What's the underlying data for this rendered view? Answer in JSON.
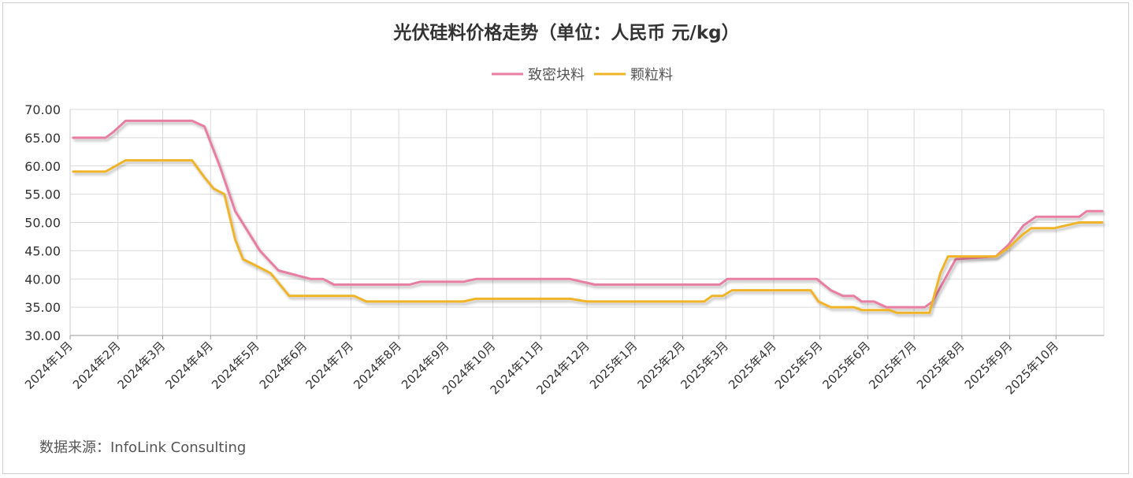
{
  "chart_data": {
    "type": "line",
    "title": "光伏硅料价格走势（单位：人民币 元/kg）",
    "source": "数据来源：InfoLink Consulting",
    "ylim": [
      30,
      70
    ],
    "yticks": [
      "30.00",
      "35.00",
      "40.00",
      "45.00",
      "50.00",
      "55.00",
      "60.00",
      "65.00",
      "70.00"
    ],
    "xlim": [
      "2024-01-01",
      "2025-11-01"
    ],
    "xticks": [
      {
        "date": "2024-01-01",
        "label": "2024年1月"
      },
      {
        "date": "2024-02-01",
        "label": "2024年2月"
      },
      {
        "date": "2024-03-01",
        "label": "2024年3月"
      },
      {
        "date": "2024-04-01",
        "label": "2024年4月"
      },
      {
        "date": "2024-05-01",
        "label": "2024年5月"
      },
      {
        "date": "2024-06-01",
        "label": "2024年6月"
      },
      {
        "date": "2024-07-01",
        "label": "2024年7月"
      },
      {
        "date": "2024-08-01",
        "label": "2024年8月"
      },
      {
        "date": "2024-09-01",
        "label": "2024年9月"
      },
      {
        "date": "2024-10-01",
        "label": "2024年10月"
      },
      {
        "date": "2024-11-01",
        "label": "2024年11月"
      },
      {
        "date": "2024-12-01",
        "label": "2024年12月"
      },
      {
        "date": "2025-01-01",
        "label": "2025年1月"
      },
      {
        "date": "2025-02-01",
        "label": "2025年2月"
      },
      {
        "date": "2025-03-01",
        "label": "2025年3月"
      },
      {
        "date": "2025-04-01",
        "label": "2025年4月"
      },
      {
        "date": "2025-05-01",
        "label": "2025年5月"
      },
      {
        "date": "2025-06-01",
        "label": "2025年6月"
      },
      {
        "date": "2025-07-01",
        "label": "2025年7月"
      },
      {
        "date": "2025-08-01",
        "label": "2025年8月"
      },
      {
        "date": "2025-09-01",
        "label": "2025年9月"
      },
      {
        "date": "2025-10-01",
        "label": "2025年10月"
      }
    ],
    "grid": true,
    "legend_position": "top-center",
    "series": [
      {
        "name": "致密块料",
        "color": "#e87ea1",
        "points": [
          [
            "2024-01-03",
            65
          ],
          [
            "2024-01-24",
            65
          ],
          [
            "2024-01-29",
            66
          ],
          [
            "2024-02-06",
            68
          ],
          [
            "2024-03-20",
            68
          ],
          [
            "2024-03-28",
            67
          ],
          [
            "2024-04-07",
            60
          ],
          [
            "2024-04-17",
            52
          ],
          [
            "2024-05-03",
            45
          ],
          [
            "2024-05-15",
            41.5
          ],
          [
            "2024-06-05",
            40
          ],
          [
            "2024-06-13",
            40
          ],
          [
            "2024-06-20",
            39
          ],
          [
            "2024-08-08",
            39
          ],
          [
            "2024-08-15",
            39.5
          ],
          [
            "2024-09-12",
            39.5
          ],
          [
            "2024-09-20",
            40
          ],
          [
            "2024-11-20",
            40
          ],
          [
            "2024-12-06",
            39
          ],
          [
            "2025-02-25",
            39
          ],
          [
            "2025-03-02",
            40
          ],
          [
            "2025-04-29",
            40
          ],
          [
            "2025-05-08",
            38
          ],
          [
            "2025-05-16",
            37
          ],
          [
            "2025-05-23",
            37
          ],
          [
            "2025-05-28",
            36
          ],
          [
            "2025-06-05",
            36
          ],
          [
            "2025-06-13",
            35
          ],
          [
            "2025-07-08",
            35
          ],
          [
            "2025-07-13",
            36
          ],
          [
            "2025-07-21",
            40
          ],
          [
            "2025-07-28",
            43.5
          ],
          [
            "2025-08-23",
            44
          ],
          [
            "2025-08-31",
            46
          ],
          [
            "2025-09-10",
            49.5
          ],
          [
            "2025-09-18",
            51
          ],
          [
            "2025-10-16",
            51
          ],
          [
            "2025-10-21",
            52
          ],
          [
            "2025-10-31",
            52
          ]
        ]
      },
      {
        "name": "颗粒料",
        "color": "#f0b429",
        "points": [
          [
            "2024-01-03",
            59
          ],
          [
            "2024-01-24",
            59
          ],
          [
            "2024-02-06",
            61
          ],
          [
            "2024-03-20",
            61
          ],
          [
            "2024-03-28",
            58
          ],
          [
            "2024-04-03",
            56
          ],
          [
            "2024-04-10",
            55
          ],
          [
            "2024-04-17",
            47
          ],
          [
            "2024-04-22",
            43.5
          ],
          [
            "2024-05-03",
            42
          ],
          [
            "2024-05-10",
            41
          ],
          [
            "2024-05-22",
            37
          ],
          [
            "2024-07-03",
            37
          ],
          [
            "2024-07-11",
            36
          ],
          [
            "2024-09-12",
            36
          ],
          [
            "2024-09-20",
            36.5
          ],
          [
            "2024-11-20",
            36.5
          ],
          [
            "2024-12-01",
            36
          ],
          [
            "2025-02-15",
            36
          ],
          [
            "2025-02-20",
            37
          ],
          [
            "2025-02-27",
            37
          ],
          [
            "2025-03-05",
            38
          ],
          [
            "2025-04-25",
            38
          ],
          [
            "2025-04-30",
            36
          ],
          [
            "2025-05-08",
            35
          ],
          [
            "2025-05-23",
            35
          ],
          [
            "2025-05-28",
            34.5
          ],
          [
            "2025-06-15",
            34.5
          ],
          [
            "2025-06-20",
            34
          ],
          [
            "2025-07-11",
            34
          ],
          [
            "2025-07-18",
            41
          ],
          [
            "2025-07-23",
            44
          ],
          [
            "2025-08-23",
            44
          ],
          [
            "2025-08-31",
            45.5
          ],
          [
            "2025-09-10",
            48
          ],
          [
            "2025-09-15",
            49
          ],
          [
            "2025-09-30",
            49
          ],
          [
            "2025-10-16",
            50
          ],
          [
            "2025-10-31",
            50
          ]
        ]
      }
    ]
  }
}
